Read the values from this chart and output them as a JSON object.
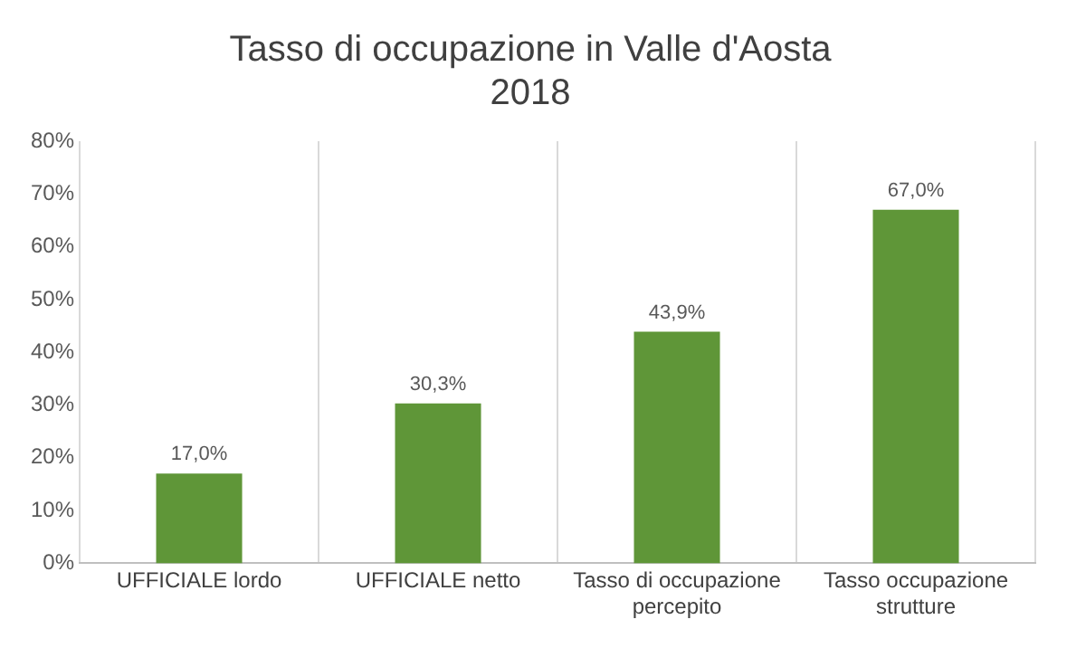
{
  "chart_data": {
    "type": "bar",
    "title": "Tasso di occupazione in Valle d'Aosta\n2018",
    "categories": [
      "UFFICIALE lordo",
      "UFFICIALE netto",
      "Tasso di occupazione percepito",
      "Tasso occupazione strutture"
    ],
    "values": [
      17.0,
      30.3,
      43.9,
      67.0
    ],
    "value_labels": [
      "17,0%",
      "30,3%",
      "43,9%",
      "67,0%"
    ],
    "color": "#5f9638",
    "ylim": [
      0,
      80
    ],
    "yticks": [
      {
        "value": 0,
        "label": "0%"
      },
      {
        "value": 10,
        "label": "10%"
      },
      {
        "value": 20,
        "label": "20%"
      },
      {
        "value": 30,
        "label": "30%"
      },
      {
        "value": 40,
        "label": "40%"
      },
      {
        "value": 50,
        "label": "50%"
      },
      {
        "value": 60,
        "label": "60%"
      },
      {
        "value": 70,
        "label": "70%"
      },
      {
        "value": 80,
        "label": "80%"
      }
    ],
    "grid": "x",
    "legend": false
  }
}
